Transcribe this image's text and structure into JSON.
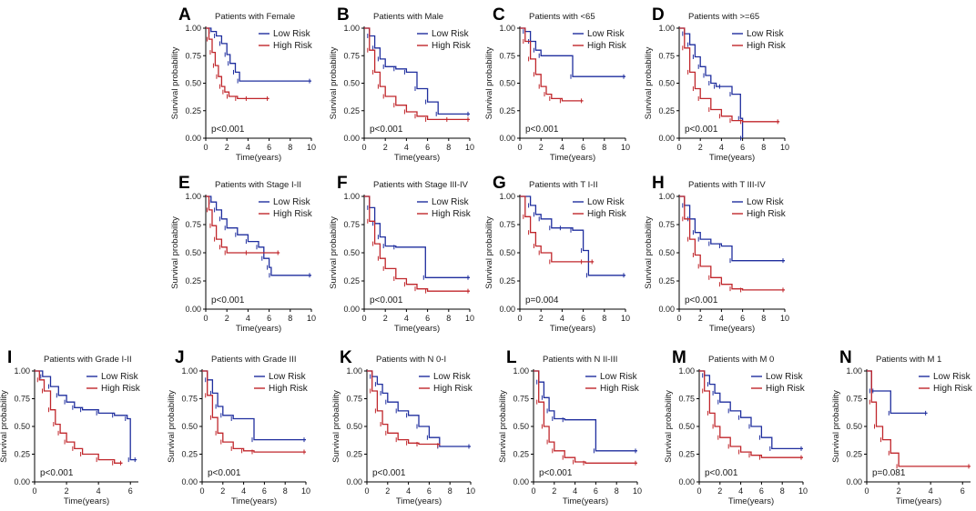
{
  "figure": {
    "title": "Kaplan-Meier survival curves by clinical subgroup"
  },
  "colors": {
    "low": "#1f2e9e",
    "high": "#c0262b",
    "axis": "#000000",
    "text": "#1a1a1a"
  },
  "legend": {
    "low": "Low Risk",
    "high": "High Risk"
  },
  "chart_data": [
    {
      "type": "line",
      "letter": "A",
      "title": "Patients with Female",
      "xlabel": "Time(years)",
      "ylabel": "Survival probability",
      "xlim": [
        0,
        10
      ],
      "ylim": [
        0,
        1
      ],
      "xticks": [
        0,
        2,
        4,
        6,
        8,
        10
      ],
      "yticks": [
        "0.00",
        "0.25",
        "0.50",
        "0.75",
        "1.00"
      ],
      "pvalue": "p<0.001",
      "series": [
        {
          "name": "Low Risk",
          "x": [
            0,
            0.5,
            1,
            1.5,
            2,
            2.3,
            2.8,
            3.2,
            10
          ],
          "y": [
            1,
            0.97,
            0.93,
            0.86,
            0.76,
            0.68,
            0.6,
            0.52,
            0.52
          ]
        },
        {
          "name": "High Risk",
          "x": [
            0,
            0.3,
            0.6,
            0.9,
            1.2,
            1.5,
            1.8,
            2.2,
            3,
            4,
            6
          ],
          "y": [
            1,
            0.9,
            0.78,
            0.66,
            0.56,
            0.47,
            0.42,
            0.38,
            0.36,
            0.36,
            0.36
          ]
        }
      ]
    },
    {
      "type": "line",
      "letter": "B",
      "title": "Patients with Male",
      "xlabel": "Time(years)",
      "ylabel": "Survival probability",
      "xlim": [
        0,
        10
      ],
      "ylim": [
        0,
        1
      ],
      "xticks": [
        0,
        2,
        4,
        6,
        8,
        10
      ],
      "yticks": [
        "0.00",
        "0.25",
        "0.50",
        "0.75",
        "1.00"
      ],
      "pvalue": "p<0.001",
      "series": [
        {
          "name": "Low Risk",
          "x": [
            0,
            0.5,
            1,
            1.5,
            2,
            3,
            4,
            5,
            6,
            7,
            10
          ],
          "y": [
            1,
            0.93,
            0.82,
            0.72,
            0.65,
            0.63,
            0.6,
            0.45,
            0.33,
            0.22,
            0.22
          ]
        },
        {
          "name": "High Risk",
          "x": [
            0,
            0.5,
            1,
            1.5,
            2,
            3,
            4,
            5,
            6,
            8,
            10
          ],
          "y": [
            1,
            0.8,
            0.6,
            0.47,
            0.38,
            0.3,
            0.24,
            0.2,
            0.17,
            0.17,
            0.17
          ]
        }
      ]
    },
    {
      "type": "line",
      "letter": "C",
      "title": "Patients with <65",
      "xlabel": "Time(years)",
      "ylabel": "Survival probability",
      "xlim": [
        0,
        10
      ],
      "ylim": [
        0,
        1
      ],
      "xticks": [
        0,
        2,
        4,
        6,
        8,
        10
      ],
      "yticks": [
        "0.00",
        "0.25",
        "0.50",
        "0.75",
        "1.00"
      ],
      "pvalue": "p<0.001",
      "series": [
        {
          "name": "Low Risk",
          "x": [
            0,
            0.5,
            1,
            1.5,
            2,
            5,
            10
          ],
          "y": [
            1,
            0.97,
            0.88,
            0.8,
            0.75,
            0.56,
            0.56
          ]
        },
        {
          "name": "High Risk",
          "x": [
            0,
            0.5,
            1,
            1.5,
            2,
            2.5,
            3,
            4,
            6
          ],
          "y": [
            1,
            0.88,
            0.72,
            0.58,
            0.47,
            0.4,
            0.36,
            0.34,
            0.34
          ]
        }
      ]
    },
    {
      "type": "line",
      "letter": "D",
      "title": "Patients with >=65",
      "xlabel": "Time(years)",
      "ylabel": "Survival probability",
      "xlim": [
        0,
        10
      ],
      "ylim": [
        0,
        1
      ],
      "xticks": [
        0,
        2,
        4,
        6,
        8,
        10
      ],
      "yticks": [
        "0.00",
        "0.25",
        "0.50",
        "0.75",
        "1.00"
      ],
      "pvalue": "p<0.001",
      "series": [
        {
          "name": "Low Risk",
          "x": [
            0,
            0.5,
            1,
            1.5,
            2,
            2.5,
            3,
            3.5,
            4,
            5,
            5.8,
            6
          ],
          "y": [
            1,
            0.95,
            0.85,
            0.74,
            0.65,
            0.57,
            0.5,
            0.47,
            0.47,
            0.4,
            0.18,
            0
          ]
        },
        {
          "name": "High Risk",
          "x": [
            0,
            0.5,
            1,
            1.5,
            2,
            3,
            4,
            5,
            6,
            9.5
          ],
          "y": [
            1,
            0.82,
            0.6,
            0.45,
            0.36,
            0.26,
            0.2,
            0.16,
            0.15,
            0.15
          ]
        }
      ]
    },
    {
      "type": "line",
      "letter": "E",
      "title": "Patients with Stage I-II",
      "xlabel": "Time(years)",
      "ylabel": "Survival probability",
      "xlim": [
        0,
        10
      ],
      "ylim": [
        0,
        1
      ],
      "xticks": [
        0,
        2,
        4,
        6,
        8,
        10
      ],
      "yticks": [
        "0.00",
        "0.25",
        "0.50",
        "0.75",
        "1.00"
      ],
      "pvalue": "p<0.001",
      "series": [
        {
          "name": "Low Risk",
          "x": [
            0,
            0.5,
            1,
            1.5,
            2,
            3,
            4,
            5,
            5.5,
            6,
            6.2,
            10
          ],
          "y": [
            1,
            0.95,
            0.88,
            0.8,
            0.72,
            0.66,
            0.6,
            0.55,
            0.45,
            0.37,
            0.3,
            0.3
          ]
        },
        {
          "name": "High Risk",
          "x": [
            0,
            0.3,
            0.6,
            1,
            1.5,
            2,
            4,
            7
          ],
          "y": [
            1,
            0.88,
            0.74,
            0.62,
            0.55,
            0.5,
            0.5,
            0.5
          ]
        }
      ]
    },
    {
      "type": "line",
      "letter": "F",
      "title": "Patients with Stage III-IV",
      "xlabel": "Time(years)",
      "ylabel": "Survival probability",
      "xlim": [
        0,
        10
      ],
      "ylim": [
        0,
        1
      ],
      "xticks": [
        0,
        2,
        4,
        6,
        8,
        10
      ],
      "yticks": [
        "0.00",
        "0.25",
        "0.50",
        "0.75",
        "1.00"
      ],
      "pvalue": "p<0.001",
      "series": [
        {
          "name": "Low Risk",
          "x": [
            0,
            0.5,
            1,
            1.5,
            2,
            3,
            5.8,
            10
          ],
          "y": [
            1,
            0.9,
            0.76,
            0.64,
            0.56,
            0.55,
            0.28,
            0.28
          ]
        },
        {
          "name": "High Risk",
          "x": [
            0,
            0.5,
            1,
            1.5,
            2,
            3,
            4,
            5,
            6,
            10
          ],
          "y": [
            1,
            0.78,
            0.58,
            0.45,
            0.36,
            0.27,
            0.22,
            0.18,
            0.16,
            0.16
          ]
        }
      ]
    },
    {
      "type": "line",
      "letter": "G",
      "title": "Patients with T I-II",
      "xlabel": "Time(years)",
      "ylabel": "Survival probability",
      "xlim": [
        0,
        10
      ],
      "ylim": [
        0,
        1
      ],
      "xticks": [
        0,
        2,
        4,
        6,
        8,
        10
      ],
      "yticks": [
        "0.00",
        "0.25",
        "0.50",
        "0.75",
        "1.00"
      ],
      "pvalue": "p=0.004",
      "series": [
        {
          "name": "Low Risk",
          "x": [
            0,
            1,
            1.5,
            2,
            3,
            4,
            5,
            6,
            6.5,
            10
          ],
          "y": [
            1,
            0.92,
            0.84,
            0.8,
            0.72,
            0.72,
            0.7,
            0.52,
            0.3,
            0.3
          ]
        },
        {
          "name": "High Risk",
          "x": [
            0,
            0.5,
            1,
            1.5,
            2,
            3,
            6,
            7
          ],
          "y": [
            1,
            0.82,
            0.68,
            0.56,
            0.5,
            0.42,
            0.42,
            0.42
          ]
        }
      ]
    },
    {
      "type": "line",
      "letter": "H",
      "title": "Patients with T III-IV",
      "xlabel": "Time(years)",
      "ylabel": "Survival probability",
      "xlim": [
        0,
        10
      ],
      "ylim": [
        0,
        1
      ],
      "xticks": [
        0,
        2,
        4,
        6,
        8,
        10
      ],
      "yticks": [
        "0.00",
        "0.25",
        "0.50",
        "0.75",
        "1.00"
      ],
      "pvalue": "p<0.001",
      "series": [
        {
          "name": "Low Risk",
          "x": [
            0,
            0.5,
            1,
            1.5,
            2,
            3,
            4,
            5,
            10
          ],
          "y": [
            1,
            0.92,
            0.8,
            0.68,
            0.62,
            0.58,
            0.56,
            0.43,
            0.43
          ]
        },
        {
          "name": "High Risk",
          "x": [
            0,
            0.5,
            1,
            1.5,
            2,
            3,
            4,
            5,
            6,
            10
          ],
          "y": [
            1,
            0.8,
            0.62,
            0.48,
            0.38,
            0.28,
            0.22,
            0.18,
            0.17,
            0.17
          ]
        }
      ]
    },
    {
      "type": "line",
      "letter": "I",
      "title": "Patients with Grade I-II",
      "xlabel": "Time(years)",
      "ylabel": "Survival probability",
      "xlim": [
        0,
        6.5
      ],
      "ylim": [
        0,
        1
      ],
      "xticks": [
        0,
        2,
        4,
        6
      ],
      "yticks": [
        "0.00",
        "0.25",
        "0.50",
        "0.75",
        "1.00"
      ],
      "pvalue": "p<0.001",
      "series": [
        {
          "name": "Low Risk",
          "x": [
            0,
            0.5,
            1,
            1.5,
            2,
            2.5,
            3,
            4,
            5,
            5.8,
            6,
            6.4
          ],
          "y": [
            1,
            0.95,
            0.86,
            0.78,
            0.72,
            0.67,
            0.65,
            0.62,
            0.6,
            0.57,
            0.2,
            0.2
          ]
        },
        {
          "name": "High Risk",
          "x": [
            0,
            0.3,
            0.6,
            1,
            1.3,
            1.6,
            2,
            2.5,
            3,
            4,
            5,
            5.5
          ],
          "y": [
            1,
            0.92,
            0.82,
            0.65,
            0.52,
            0.44,
            0.36,
            0.3,
            0.25,
            0.2,
            0.17,
            0.17
          ]
        }
      ]
    },
    {
      "type": "line",
      "letter": "J",
      "title": "Patients with Grade III",
      "xlabel": "Time(years)",
      "ylabel": "Survival probability",
      "xlim": [
        0,
        10
      ],
      "ylim": [
        0,
        1
      ],
      "xticks": [
        0,
        2,
        4,
        6,
        8,
        10
      ],
      "yticks": [
        "0.00",
        "0.25",
        "0.50",
        "0.75",
        "1.00"
      ],
      "pvalue": "p<0.001",
      "series": [
        {
          "name": "Low Risk",
          "x": [
            0,
            0.5,
            1,
            1.5,
            2,
            3,
            5,
            10
          ],
          "y": [
            1,
            0.92,
            0.8,
            0.68,
            0.6,
            0.57,
            0.38,
            0.38
          ]
        },
        {
          "name": "High Risk",
          "x": [
            0,
            0.5,
            1,
            1.5,
            2,
            3,
            4,
            5,
            10
          ],
          "y": [
            1,
            0.78,
            0.58,
            0.44,
            0.36,
            0.3,
            0.28,
            0.27,
            0.27
          ]
        }
      ]
    },
    {
      "type": "line",
      "letter": "K",
      "title": "Patients with N 0-I",
      "xlabel": "Time(years)",
      "ylabel": "Survival probability",
      "xlim": [
        0,
        10
      ],
      "ylim": [
        0,
        1
      ],
      "xticks": [
        0,
        2,
        4,
        6,
        8,
        10
      ],
      "yticks": [
        "0.00",
        "0.25",
        "0.50",
        "0.75",
        "1.00"
      ],
      "pvalue": "p<0.001",
      "series": [
        {
          "name": "Low Risk",
          "x": [
            0,
            0.5,
            1,
            1.5,
            2,
            3,
            4,
            5,
            6,
            7,
            10
          ],
          "y": [
            1,
            0.95,
            0.88,
            0.8,
            0.72,
            0.64,
            0.6,
            0.5,
            0.4,
            0.32,
            0.32
          ]
        },
        {
          "name": "High Risk",
          "x": [
            0,
            0.5,
            1,
            1.5,
            2,
            3,
            4,
            5,
            7
          ],
          "y": [
            1,
            0.82,
            0.64,
            0.52,
            0.44,
            0.38,
            0.35,
            0.34,
            0.33
          ]
        }
      ]
    },
    {
      "type": "line",
      "letter": "L",
      "title": "Patients with N II-III",
      "xlabel": "Time(years)",
      "ylabel": "Survival probability",
      "xlim": [
        0,
        10
      ],
      "ylim": [
        0,
        1
      ],
      "xticks": [
        0,
        2,
        4,
        6,
        8,
        10
      ],
      "yticks": [
        "0.00",
        "0.25",
        "0.50",
        "0.75",
        "1.00"
      ],
      "pvalue": "p<0.001",
      "series": [
        {
          "name": "Low Risk",
          "x": [
            0,
            0.5,
            1,
            1.5,
            2,
            3,
            6,
            10
          ],
          "y": [
            1,
            0.9,
            0.76,
            0.64,
            0.57,
            0.56,
            0.28,
            0.28
          ]
        },
        {
          "name": "High Risk",
          "x": [
            0,
            0.5,
            1,
            1.5,
            2,
            3,
            4,
            5,
            10
          ],
          "y": [
            1,
            0.72,
            0.5,
            0.36,
            0.28,
            0.22,
            0.18,
            0.17,
            0.17
          ]
        }
      ]
    },
    {
      "type": "line",
      "letter": "M",
      "title": "Patients with M 0",
      "xlabel": "Time(years)",
      "ylabel": "Survival probability",
      "xlim": [
        0,
        10
      ],
      "ylim": [
        0,
        1
      ],
      "xticks": [
        0,
        2,
        4,
        6,
        8,
        10
      ],
      "yticks": [
        "0.00",
        "0.25",
        "0.50",
        "0.75",
        "1.00"
      ],
      "pvalue": "p<0.001",
      "series": [
        {
          "name": "Low Risk",
          "x": [
            0,
            0.5,
            1,
            1.5,
            2,
            3,
            4,
            5,
            6,
            7,
            10
          ],
          "y": [
            1,
            0.96,
            0.88,
            0.8,
            0.72,
            0.64,
            0.58,
            0.5,
            0.4,
            0.3,
            0.3
          ]
        },
        {
          "name": "High Risk",
          "x": [
            0,
            0.5,
            1,
            1.5,
            2,
            3,
            4,
            5,
            6,
            10
          ],
          "y": [
            1,
            0.82,
            0.62,
            0.5,
            0.4,
            0.32,
            0.27,
            0.24,
            0.22,
            0.22
          ]
        }
      ]
    },
    {
      "type": "line",
      "letter": "N",
      "title": "Patients with M 1",
      "xlabel": "Time(years)",
      "ylabel": "Survival probability",
      "xlim": [
        0,
        6.5
      ],
      "ylim": [
        0,
        1
      ],
      "xticks": [
        0,
        2,
        4,
        6
      ],
      "yticks": [
        "0.00",
        "0.25",
        "0.50",
        "0.75",
        "1.00"
      ],
      "pvalue": "p=0.081",
      "series": [
        {
          "name": "Low Risk",
          "x": [
            0,
            0.3,
            0.5,
            1.5,
            3.8
          ],
          "y": [
            1,
            0.82,
            0.82,
            0.62,
            0.62
          ]
        },
        {
          "name": "High Risk",
          "x": [
            0,
            0.3,
            0.6,
            1,
            1.5,
            2,
            6.5
          ],
          "y": [
            1,
            0.72,
            0.5,
            0.38,
            0.26,
            0.14,
            0.14
          ]
        }
      ]
    }
  ]
}
